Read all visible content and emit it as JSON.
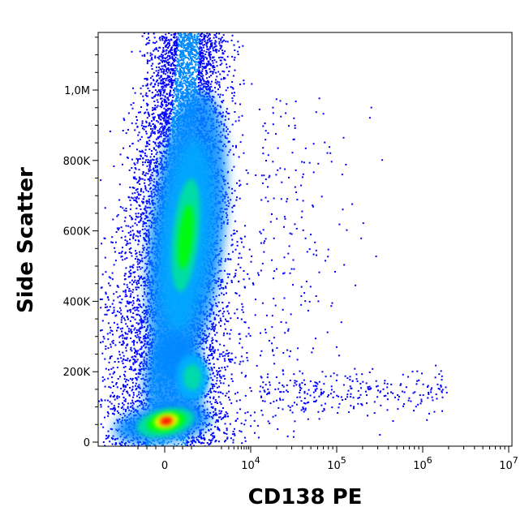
{
  "chart_data": {
    "type": "scatter",
    "subtype": "flow-cytometry-density-plot",
    "xlabel": "CD138 PE",
    "ylabel": "Side Scatter",
    "x_scale": "biexponential",
    "y_scale": "linear",
    "ylim": [
      0,
      1160000
    ],
    "grid": false,
    "legend": "none",
    "y_ticks": [
      {
        "value": 0,
        "label": "0"
      },
      {
        "value": 200000,
        "label": "200K"
      },
      {
        "value": 400000,
        "label": "400K"
      },
      {
        "value": 600000,
        "label": "600K"
      },
      {
        "value": 800000,
        "label": "800K"
      },
      {
        "value": 1000000,
        "label": "1,0M"
      }
    ],
    "x_ticks": [
      {
        "value": 0,
        "label": "0",
        "exp": ""
      },
      {
        "value": 10000,
        "label": "10",
        "exp": "4"
      },
      {
        "value": 100000,
        "label": "10",
        "exp": "5"
      },
      {
        "value": 1000000,
        "label": "10",
        "exp": "6"
      },
      {
        "value": 10000000,
        "label": "10",
        "exp": "7"
      }
    ],
    "populations": [
      {
        "x_center": 0,
        "y_center": 50000,
        "density": "highest"
      },
      {
        "x_center": 2500,
        "y_center": 170000,
        "density": "medium"
      },
      {
        "x_center": 2500,
        "y_center": 580000,
        "density": "high"
      }
    ],
    "colors": {
      "low": "#0000ff",
      "mid_low": "#0088ff",
      "mid": "#00e0a0",
      "mid_high": "#00ff00",
      "high": "#ffff00",
      "highest": "#ff0000"
    }
  }
}
